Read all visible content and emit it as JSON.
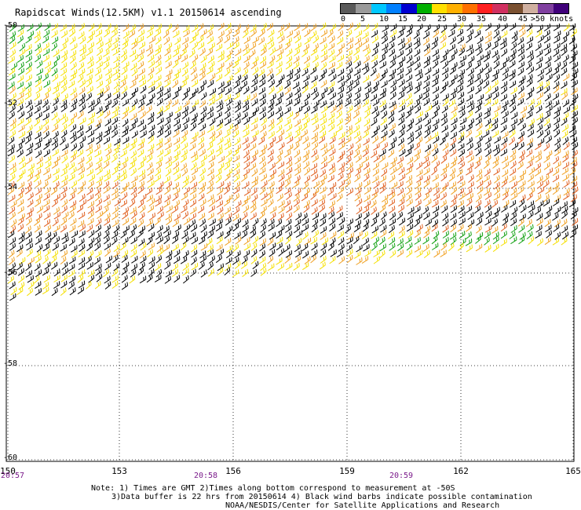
{
  "title": "Rapidscat Winds(12.5KM) v1.1 20150614 ascending",
  "legend": {
    "unit_label": ">50 knots",
    "labels": [
      "0",
      "5",
      "10",
      "15",
      "20",
      "25",
      "30",
      "35",
      "40",
      "45"
    ],
    "colors": [
      "#5a5a5a",
      "#9a9a9a",
      "#00c8ff",
      "#0080ff",
      "#0000d0",
      "#00b000",
      "#ffe000",
      "#ffb000",
      "#ff7000",
      "#ff2020",
      "#d03060",
      "#7a5030",
      "#d0b0a0",
      "#8040a0",
      "#40007a"
    ]
  },
  "axes": {
    "lat_ticks": [
      "-50",
      "-52",
      "-54",
      "-56",
      "-58",
      "-60"
    ],
    "lon_ticks": [
      "150",
      "153",
      "156",
      "159",
      "162",
      "165"
    ],
    "times": [
      "20:57",
      "20:58",
      "20:59"
    ]
  },
  "note": {
    "line1": "Note: 1) Times are GMT 2)Times along bottom correspond to measurement at -50S",
    "line2": "3)Data buffer is 22 hrs from 20150614 4) Black wind barbs indicate possible contamination",
    "line3": "NOAA/NESDIS/Center for Satellite Applications and Research"
  },
  "barb_colors": {
    "contaminated": "#000000",
    "yellow": "#f5e000",
    "orange": "#f0a020",
    "red_orange": "#e06020",
    "green": "#10a010"
  }
}
